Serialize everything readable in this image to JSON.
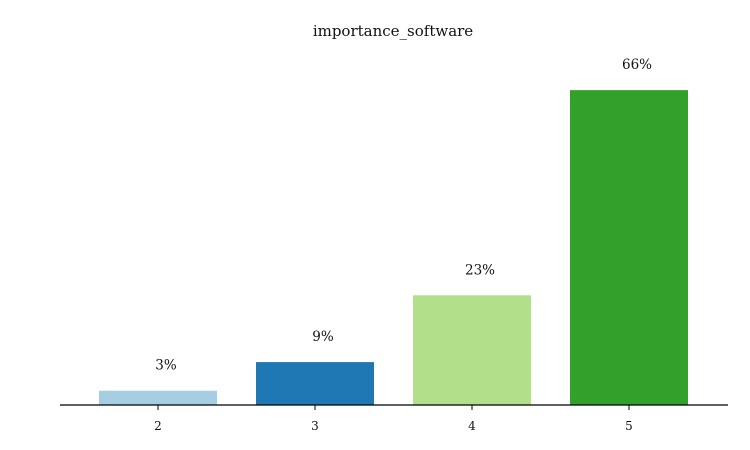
{
  "chart_data": {
    "type": "bar",
    "title": "importance_software",
    "xlabel": "",
    "ylabel": "",
    "categories": [
      "2",
      "3",
      "4",
      "5"
    ],
    "values": [
      3,
      9,
      23,
      66
    ],
    "data_labels": [
      "3%",
      "9%",
      "23%",
      "66%"
    ],
    "colors": [
      "#a6cee3",
      "#1f78b4",
      "#b2df8a",
      "#33a02c"
    ],
    "ylim": [
      0,
      70
    ],
    "grid": false,
    "legend": "none",
    "y_axis_visible": false
  }
}
